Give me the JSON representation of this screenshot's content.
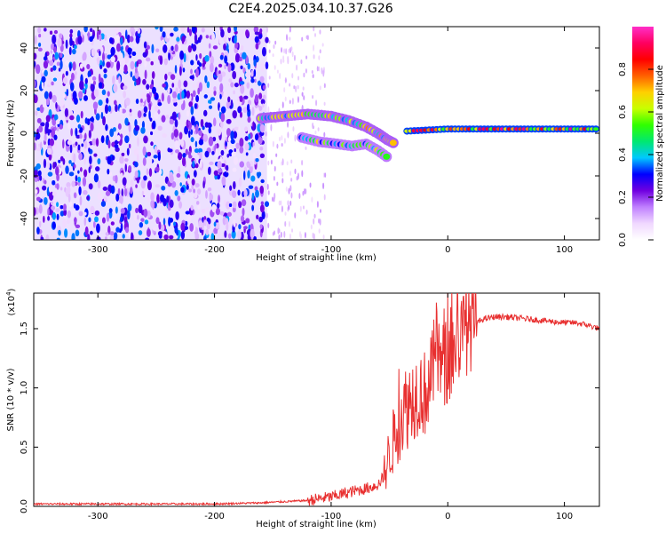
{
  "title": "C2E4.2025.034.10.37.G26",
  "chart_data": [
    {
      "type": "heatmap",
      "xlabel": "Height of straight line (km)",
      "ylabel": "Frequency (Hz)",
      "xlim": [
        -355,
        130
      ],
      "ylim": [
        -50,
        50
      ],
      "xticks": [
        -300,
        -200,
        -100,
        0,
        100
      ],
      "yticks": [
        -40,
        -20,
        0,
        20,
        40
      ],
      "colorbar": {
        "label": "Normalized spectral amplitude",
        "ticks": [
          0.0,
          0.2,
          0.4,
          0.6,
          0.8
        ],
        "range": [
          0,
          1
        ],
        "colors": [
          "#ffffff",
          "#f0d8ff",
          "#c080ff",
          "#7000e0",
          "#0000ff",
          "#00c8ff",
          "#00e870",
          "#30ff00",
          "#c8ff00",
          "#ffd000",
          "#ff6000",
          "#ff0000",
          "#ff0060",
          "#ff2ec8"
        ]
      },
      "features": [
        {
          "segment": "noise",
          "x_range": [
            -355,
            -155
          ],
          "frequency_range": [
            -50,
            50
          ],
          "amplitude": 0.1
        },
        {
          "segment": "upper branch",
          "points": [
            [
              -160,
              7
            ],
            [
              -140,
              8
            ],
            [
              -120,
              9
            ],
            [
              -100,
              8
            ],
            [
              -85,
              6
            ],
            [
              -70,
              3
            ],
            [
              -60,
              0
            ],
            [
              -52,
              -3
            ],
            [
              -45,
              -5
            ]
          ],
          "amplitude": 0.5
        },
        {
          "segment": "lower branch",
          "points": [
            [
              -125,
              -2
            ],
            [
              -110,
              -4
            ],
            [
              -95,
              -5
            ],
            [
              -82,
              -6
            ],
            [
              -70,
              -5
            ],
            [
              -60,
              -8
            ],
            [
              -50,
              -12
            ]
          ],
          "amplitude": 0.45
        },
        {
          "segment": "carrier",
          "points": [
            [
              -35,
              1
            ],
            [
              0,
              2
            ],
            [
              50,
              2
            ],
            [
              100,
              2
            ],
            [
              130,
              2
            ]
          ],
          "amplitude": 0.95
        }
      ]
    },
    {
      "type": "line",
      "xlabel": "Height of straight line (km)",
      "ylabel": "SNR (10 * v/v)",
      "yscale_label": "(x10",
      "yscale_exp": "4",
      "yscale_close": ")",
      "xlim": [
        -355,
        130
      ],
      "ylim": [
        0,
        1.8
      ],
      "xticks": [
        -300,
        -200,
        -100,
        0,
        100
      ],
      "yticks": [
        "0.0",
        "0.5",
        "1.0",
        "1.5"
      ],
      "color": "#e83030",
      "series": [
        {
          "x": [
            -355,
            -300,
            -250,
            -200,
            -160,
            -120,
            -100,
            -80,
            -70,
            -60,
            -55,
            -50,
            -45,
            -40,
            -35,
            -30,
            -25,
            -20,
            -15,
            -10,
            -5,
            0,
            10,
            20,
            30,
            40,
            50,
            60,
            70,
            80,
            90,
            100,
            110,
            120,
            130
          ],
          "y": [
            0.02,
            0.02,
            0.02,
            0.02,
            0.03,
            0.05,
            0.08,
            0.13,
            0.15,
            0.18,
            0.25,
            0.45,
            0.6,
            0.78,
            0.85,
            0.92,
            0.98,
            0.95,
            1.05,
            1.3,
            1.18,
            1.22,
            1.42,
            1.52,
            1.58,
            1.6,
            1.6,
            1.59,
            1.58,
            1.57,
            1.56,
            1.55,
            1.55,
            1.53,
            1.5
          ]
        }
      ]
    }
  ]
}
